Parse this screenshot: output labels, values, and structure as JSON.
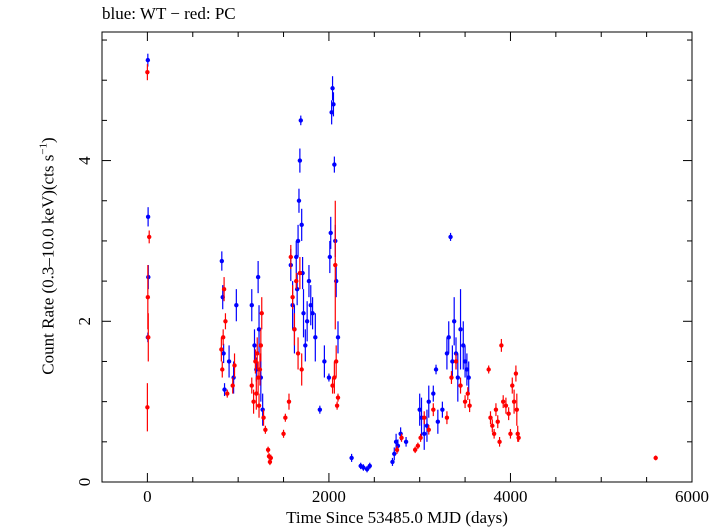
{
  "chart_data": {
    "type": "scatter",
    "title": "blue: WT − red: PC",
    "xlabel": "Time Since 53485.0 MJD (days)",
    "ylabel_main": "Count Rate (0.3–10.0 keV)(cts s",
    "ylabel_exp": "−1",
    "ylabel_end": ")",
    "xlim": [
      -500,
      6000
    ],
    "ylim": [
      0,
      5.6
    ],
    "xticks": [
      0,
      2000,
      4000,
      6000
    ],
    "yticks": [
      0,
      2,
      4
    ],
    "grid": false,
    "series": [
      {
        "name": "WT",
        "color": "#0000ff",
        "points": [
          [
            5,
            5.25,
            0.08
          ],
          [
            8,
            3.3,
            0.12
          ],
          [
            10,
            2.55,
            0.15
          ],
          [
            5,
            1.8,
            0.06
          ],
          [
            820,
            2.75,
            0.12
          ],
          [
            830,
            2.3,
            0.15
          ],
          [
            840,
            1.6,
            0.12
          ],
          [
            850,
            1.15,
            0.08
          ],
          [
            900,
            1.5,
            0.2
          ],
          [
            950,
            1.3,
            0.2
          ],
          [
            980,
            2.2,
            0.2
          ],
          [
            1150,
            2.2,
            0.2
          ],
          [
            1180,
            1.7,
            0.2
          ],
          [
            1200,
            1.4,
            0.15
          ],
          [
            1220,
            2.55,
            0.2
          ],
          [
            1230,
            1.9,
            0.3
          ],
          [
            1250,
            1.3,
            0.3
          ],
          [
            1270,
            0.9,
            0.2
          ],
          [
            1580,
            2.7,
            0.2
          ],
          [
            1600,
            2.2,
            0.3
          ],
          [
            1620,
            1.9,
            0.3
          ],
          [
            1640,
            2.8,
            0.2
          ],
          [
            1650,
            2.4,
            0.2
          ],
          [
            1660,
            3.0,
            0.2
          ],
          [
            1670,
            3.5,
            0.15
          ],
          [
            1680,
            4.0,
            0.15
          ],
          [
            1690,
            4.5,
            0.06
          ],
          [
            1700,
            3.2,
            0.2
          ],
          [
            1710,
            2.6,
            0.2
          ],
          [
            1720,
            2.1,
            0.3
          ],
          [
            1740,
            1.7,
            0.2
          ],
          [
            1760,
            2.0,
            0.25
          ],
          [
            1780,
            2.5,
            0.2
          ],
          [
            1800,
            2.2,
            0.25
          ],
          [
            1820,
            2.1,
            0.2
          ],
          [
            1850,
            1.8,
            0.3
          ],
          [
            1900,
            0.9,
            0.05
          ],
          [
            1950,
            1.5,
            0.2
          ],
          [
            2000,
            1.3,
            0.05
          ],
          [
            2010,
            2.8,
            0.2
          ],
          [
            2020,
            3.1,
            0.2
          ],
          [
            2030,
            4.6,
            0.15
          ],
          [
            2040,
            4.9,
            0.15
          ],
          [
            2050,
            4.7,
            0.15
          ],
          [
            2060,
            3.95,
            0.1
          ],
          [
            2070,
            3.0,
            0.2
          ],
          [
            2080,
            2.5,
            0.2
          ],
          [
            2100,
            1.8,
            0.2
          ],
          [
            2250,
            0.3,
            0.05
          ],
          [
            2350,
            0.2,
            0.04
          ],
          [
            2380,
            0.18,
            0.04
          ],
          [
            2420,
            0.16,
            0.04
          ],
          [
            2450,
            0.2,
            0.04
          ],
          [
            2700,
            0.25,
            0.05
          ],
          [
            2720,
            0.35,
            0.08
          ],
          [
            2740,
            0.5,
            0.1
          ],
          [
            2760,
            0.45,
            0.08
          ],
          [
            2790,
            0.6,
            0.08
          ],
          [
            2850,
            0.5,
            0.06
          ],
          [
            3000,
            0.9,
            0.2
          ],
          [
            3020,
            0.8,
            0.25
          ],
          [
            3050,
            0.6,
            0.2
          ],
          [
            3080,
            0.7,
            0.2
          ],
          [
            3100,
            1.0,
            0.2
          ],
          [
            3150,
            1.1,
            0.1
          ],
          [
            3180,
            1.4,
            0.06
          ],
          [
            3200,
            0.75,
            0.15
          ],
          [
            3250,
            0.9,
            0.1
          ],
          [
            3300,
            1.6,
            0.2
          ],
          [
            3320,
            1.8,
            0.2
          ],
          [
            3340,
            3.05,
            0.05
          ],
          [
            3360,
            1.5,
            0.2
          ],
          [
            3380,
            2.0,
            0.3
          ],
          [
            3400,
            1.6,
            0.2
          ],
          [
            3420,
            1.3,
            0.3
          ],
          [
            3450,
            1.9,
            0.5
          ],
          [
            3480,
            1.7,
            0.3
          ],
          [
            3500,
            1.5,
            0.2
          ],
          [
            3520,
            1.4,
            0.2
          ],
          [
            3540,
            1.3,
            0.2
          ]
        ]
      },
      {
        "name": "PC",
        "color": "#ff0000",
        "points": [
          [
            0,
            5.1,
            0.1
          ],
          [
            20,
            3.05,
            0.08
          ],
          [
            0,
            0.93,
            0.3
          ],
          [
            5,
            2.3,
            0.4
          ],
          [
            10,
            1.8,
            0.3
          ],
          [
            815,
            1.65,
            0.15
          ],
          [
            825,
            1.4,
            0.1
          ],
          [
            835,
            1.8,
            0.1
          ],
          [
            845,
            2.4,
            0.15
          ],
          [
            860,
            2.0,
            0.1
          ],
          [
            880,
            1.1,
            0.05
          ],
          [
            940,
            1.2,
            0.1
          ],
          [
            960,
            1.45,
            0.15
          ],
          [
            1150,
            1.2,
            0.1
          ],
          [
            1170,
            1.0,
            0.15
          ],
          [
            1190,
            1.5,
            0.15
          ],
          [
            1200,
            1.1,
            0.2
          ],
          [
            1210,
            1.6,
            0.2
          ],
          [
            1220,
            1.3,
            0.2
          ],
          [
            1230,
            0.95,
            0.15
          ],
          [
            1240,
            1.4,
            0.2
          ],
          [
            1250,
            1.7,
            0.2
          ],
          [
            1260,
            2.1,
            0.2
          ],
          [
            1280,
            0.8,
            0.1
          ],
          [
            1300,
            0.65,
            0.05
          ],
          [
            1330,
            0.4,
            0.04
          ],
          [
            1340,
            0.32,
            0.04
          ],
          [
            1350,
            0.25,
            0.04
          ],
          [
            1360,
            0.3,
            0.04
          ],
          [
            1500,
            0.6,
            0.05
          ],
          [
            1520,
            0.8,
            0.05
          ],
          [
            1560,
            1.0,
            0.1
          ],
          [
            1580,
            2.8,
            0.15
          ],
          [
            1600,
            2.3,
            0.15
          ],
          [
            1620,
            1.9,
            0.2
          ],
          [
            1640,
            2.5,
            0.1
          ],
          [
            1660,
            1.6,
            0.2
          ],
          [
            1680,
            2.6,
            0.2
          ],
          [
            1700,
            1.4,
            0.2
          ],
          [
            2040,
            1.2,
            0.1
          ],
          [
            2060,
            1.3,
            0.2
          ],
          [
            2070,
            2.7,
            0.8
          ],
          [
            2080,
            1.5,
            0.2
          ],
          [
            2090,
            0.95,
            0.05
          ],
          [
            2100,
            1.05,
            0.05
          ],
          [
            2750,
            0.4,
            0.05
          ],
          [
            2800,
            0.55,
            0.05
          ],
          [
            2950,
            0.4,
            0.04
          ],
          [
            2980,
            0.45,
            0.04
          ],
          [
            3010,
            0.55,
            0.05
          ],
          [
            3050,
            0.8,
            0.08
          ],
          [
            3100,
            0.65,
            0.06
          ],
          [
            3150,
            0.9,
            0.08
          ],
          [
            3300,
            0.8,
            0.08
          ],
          [
            3350,
            1.3,
            0.08
          ],
          [
            3400,
            1.5,
            0.1
          ],
          [
            3450,
            1.2,
            0.1
          ],
          [
            3500,
            1.0,
            0.08
          ],
          [
            3530,
            1.1,
            0.08
          ],
          [
            3550,
            0.95,
            0.08
          ],
          [
            3760,
            1.4,
            0.05
          ],
          [
            3780,
            0.8,
            0.08
          ],
          [
            3800,
            0.7,
            0.08
          ],
          [
            3820,
            0.6,
            0.06
          ],
          [
            3840,
            0.9,
            0.08
          ],
          [
            3860,
            0.75,
            0.08
          ],
          [
            3880,
            0.5,
            0.06
          ],
          [
            3900,
            1.7,
            0.08
          ],
          [
            3920,
            1.0,
            0.08
          ],
          [
            3950,
            0.95,
            0.1
          ],
          [
            3980,
            0.85,
            0.08
          ],
          [
            4000,
            0.6,
            0.06
          ],
          [
            4020,
            1.2,
            0.1
          ],
          [
            4040,
            1.0,
            0.15
          ],
          [
            4060,
            1.35,
            0.1
          ],
          [
            4070,
            0.9,
            0.2
          ],
          [
            4080,
            0.6,
            0.1
          ],
          [
            4090,
            0.55,
            0.05
          ],
          [
            5600,
            0.3,
            0.03
          ]
        ]
      }
    ]
  }
}
